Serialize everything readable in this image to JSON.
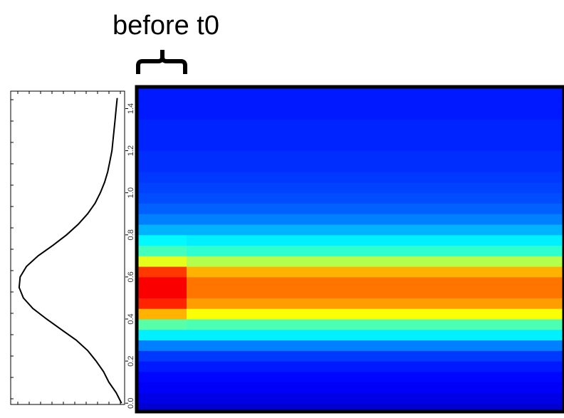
{
  "annotation": "before t0",
  "chart_data": [
    {
      "type": "density",
      "y": [
        0,
        0.05,
        0.1,
        0.15,
        0.2,
        0.25,
        0.3,
        0.35,
        0.4,
        0.45,
        0.5,
        0.55,
        0.6,
        0.65,
        0.7,
        0.75,
        0.8,
        0.85,
        0.9,
        0.95,
        1,
        1.05,
        1.1,
        1.15,
        1.2,
        1.25,
        1.3,
        1.35,
        1.4,
        1.45
      ],
      "values": [
        0.03,
        0.08,
        0.15,
        0.2,
        0.27,
        0.35,
        0.46,
        0.6,
        0.74,
        0.87,
        0.96,
        1,
        0.99,
        0.93,
        0.82,
        0.68,
        0.55,
        0.44,
        0.35,
        0.28,
        0.23,
        0.19,
        0.16,
        0.14,
        0.12,
        0.11,
        0.1,
        0.09,
        0.08,
        0.07
      ],
      "color": "#000000",
      "xlim": [
        0,
        1.08
      ],
      "x_reversed": true,
      "ylim": [
        -0.04,
        1.51
      ]
    },
    {
      "type": "heatmap",
      "y": [
        0,
        0.05,
        0.1,
        0.15,
        0.2,
        0.25,
        0.3,
        0.35,
        0.4,
        0.45,
        0.5,
        0.55,
        0.6,
        0.65,
        0.7,
        0.75,
        0.8,
        0.85,
        0.9,
        0.95,
        1,
        1.05,
        1.1,
        1.15,
        1.2,
        1.25,
        1.3,
        1.35,
        1.4,
        1.45
      ],
      "columns": [
        {
          "values": [
            0.1,
            0.12,
            0.13,
            0.15,
            0.18,
            0.25,
            0.36,
            0.46,
            0.7,
            0.84,
            0.88,
            0.88,
            0.82,
            0.6,
            0.44,
            0.37,
            0.3,
            0.25,
            0.22,
            0.2,
            0.19,
            0.18,
            0.17,
            0.17,
            0.16,
            0.16,
            0.16,
            0.15,
            0.15,
            0.15
          ]
        },
        {
          "values": [
            0.1,
            0.12,
            0.13,
            0.15,
            0.18,
            0.25,
            0.36,
            0.45,
            0.62,
            0.72,
            0.76,
            0.76,
            0.7,
            0.55,
            0.42,
            0.36,
            0.3,
            0.25,
            0.22,
            0.2,
            0.19,
            0.18,
            0.17,
            0.17,
            0.16,
            0.16,
            0.16,
            0.15,
            0.15,
            0.15
          ]
        }
      ],
      "colormap": "jet",
      "clim": [
        0,
        1
      ],
      "ylim": [
        -0.04,
        1.51
      ],
      "yticks": [
        {
          "value": 0,
          "label": "0.0"
        },
        0.2,
        0.4,
        0.6,
        0.8,
        {
          "value": 1,
          "label": "1.0"
        },
        1.2,
        1.4
      ]
    }
  ]
}
